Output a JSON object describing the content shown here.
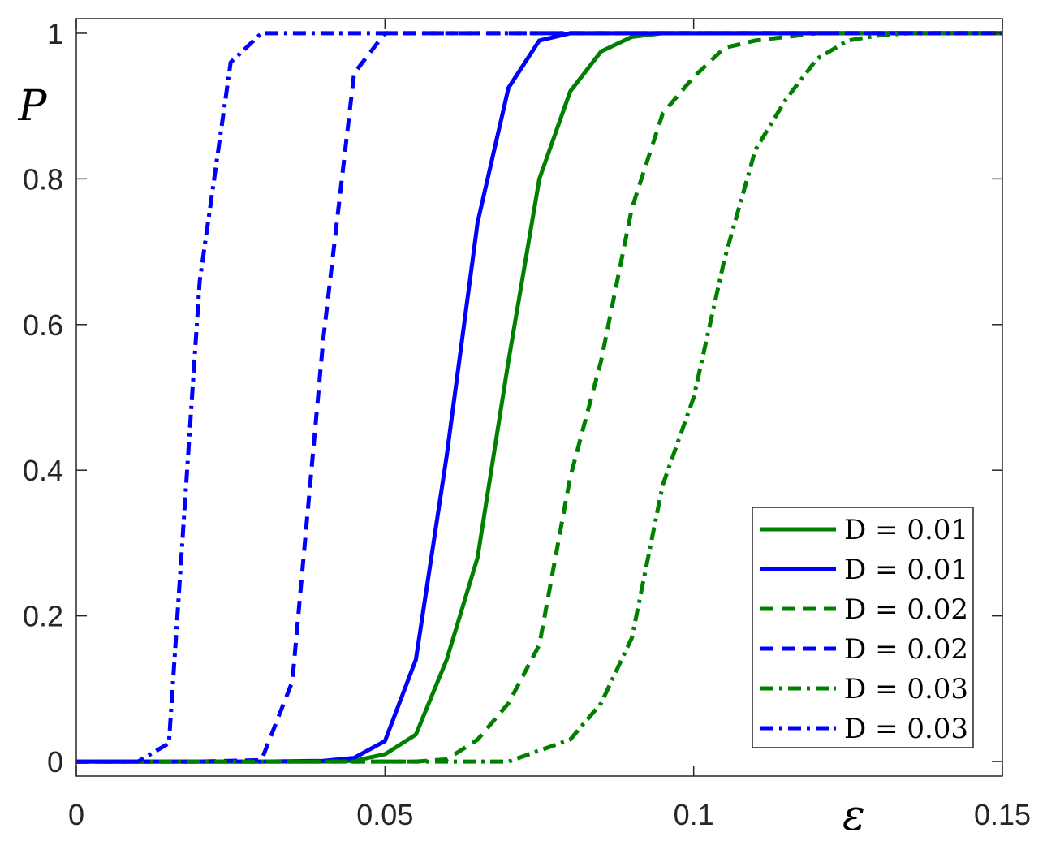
{
  "chart_data": {
    "type": "line",
    "xlabel": "ε",
    "ylabel": "P",
    "xlim": [
      0,
      0.15
    ],
    "ylim": [
      -0.02,
      1.02
    ],
    "x_ticks": [
      0,
      0.05,
      0.1,
      0.15
    ],
    "x_tick_labels": [
      "0",
      "0.05",
      "0.1",
      "0.15"
    ],
    "y_ticks": [
      0,
      0.2,
      0.4,
      0.6,
      0.8,
      1
    ],
    "y_tick_labels": [
      "0",
      "0.2",
      "0.4",
      "0.6",
      "0.8",
      "1"
    ],
    "grid": false,
    "legend_position": "bottom-right",
    "series": [
      {
        "name": "D = 0.01",
        "color": "#008000",
        "dash": "solid",
        "x": [
          0,
          0.01,
          0.02,
          0.03,
          0.04,
          0.045,
          0.05,
          0.055,
          0.06,
          0.065,
          0.07,
          0.075,
          0.08,
          0.085,
          0.09,
          0.095,
          0.1,
          0.11,
          0.12,
          0.13,
          0.14,
          0.15
        ],
        "y": [
          0,
          0,
          0,
          0,
          0,
          0.001,
          0.01,
          0.037,
          0.14,
          0.28,
          0.55,
          0.8,
          0.92,
          0.975,
          0.995,
          1,
          1,
          1,
          1,
          1,
          1,
          1
        ]
      },
      {
        "name": "D = 0.01",
        "color": "#0000ff",
        "dash": "solid",
        "x": [
          0,
          0.01,
          0.02,
          0.03,
          0.04,
          0.045,
          0.05,
          0.055,
          0.06,
          0.065,
          0.07,
          0.075,
          0.08,
          0.085,
          0.09,
          0.1,
          0.11,
          0.12,
          0.13,
          0.14,
          0.15
        ],
        "y": [
          0,
          0,
          0,
          0,
          0.001,
          0.005,
          0.028,
          0.14,
          0.42,
          0.74,
          0.925,
          0.99,
          1,
          1,
          1,
          1,
          1,
          1,
          1,
          1,
          1
        ]
      },
      {
        "name": "D = 0.02",
        "color": "#008000",
        "dash": "dashed",
        "x": [
          0,
          0.01,
          0.02,
          0.03,
          0.04,
          0.05,
          0.055,
          0.06,
          0.065,
          0.07,
          0.075,
          0.08,
          0.085,
          0.09,
          0.095,
          0.1,
          0.105,
          0.11,
          0.115,
          0.12,
          0.125,
          0.13,
          0.135,
          0.14,
          0.15
        ],
        "y": [
          0,
          0,
          0,
          0,
          0,
          0,
          0,
          0.003,
          0.03,
          0.08,
          0.16,
          0.39,
          0.55,
          0.76,
          0.89,
          0.94,
          0.98,
          0.99,
          0.995,
          1,
          1,
          1,
          1,
          1,
          1
        ]
      },
      {
        "name": "D = 0.02",
        "color": "#0000ff",
        "dash": "dashed",
        "x": [
          0,
          0.01,
          0.02,
          0.03,
          0.035,
          0.04,
          0.045,
          0.05,
          0.055,
          0.06,
          0.07,
          0.08,
          0.09,
          0.1,
          0.11,
          0.12,
          0.13,
          0.14,
          0.15
        ],
        "y": [
          0,
          0,
          0,
          0.002,
          0.11,
          0.58,
          0.945,
          1,
          1,
          1,
          1,
          1,
          1,
          1,
          1,
          1,
          1,
          1,
          1
        ]
      },
      {
        "name": "D = 0.03",
        "color": "#008000",
        "dash": "dashdot",
        "x": [
          0,
          0.01,
          0.02,
          0.03,
          0.04,
          0.05,
          0.06,
          0.07,
          0.075,
          0.08,
          0.085,
          0.09,
          0.095,
          0.1,
          0.105,
          0.11,
          0.115,
          0.12,
          0.125,
          0.13,
          0.135,
          0.14,
          0.15
        ],
        "y": [
          0,
          0,
          0,
          0,
          0,
          0,
          0,
          0,
          0.015,
          0.03,
          0.08,
          0.17,
          0.38,
          0.5,
          0.69,
          0.84,
          0.91,
          0.965,
          0.99,
          0.997,
          1,
          1,
          1
        ]
      },
      {
        "name": "D = 0.03",
        "color": "#0000ff",
        "dash": "dashdot",
        "x": [
          0,
          0.01,
          0.015,
          0.02,
          0.025,
          0.03,
          0.035,
          0.04,
          0.05,
          0.06,
          0.07,
          0.08,
          0.09,
          0.1,
          0.11,
          0.12,
          0.13,
          0.14,
          0.15
        ],
        "y": [
          0,
          0,
          0.025,
          0.66,
          0.96,
          1,
          1,
          1,
          1,
          1,
          1,
          1,
          1,
          1,
          1,
          1,
          1,
          1,
          1
        ]
      }
    ]
  }
}
